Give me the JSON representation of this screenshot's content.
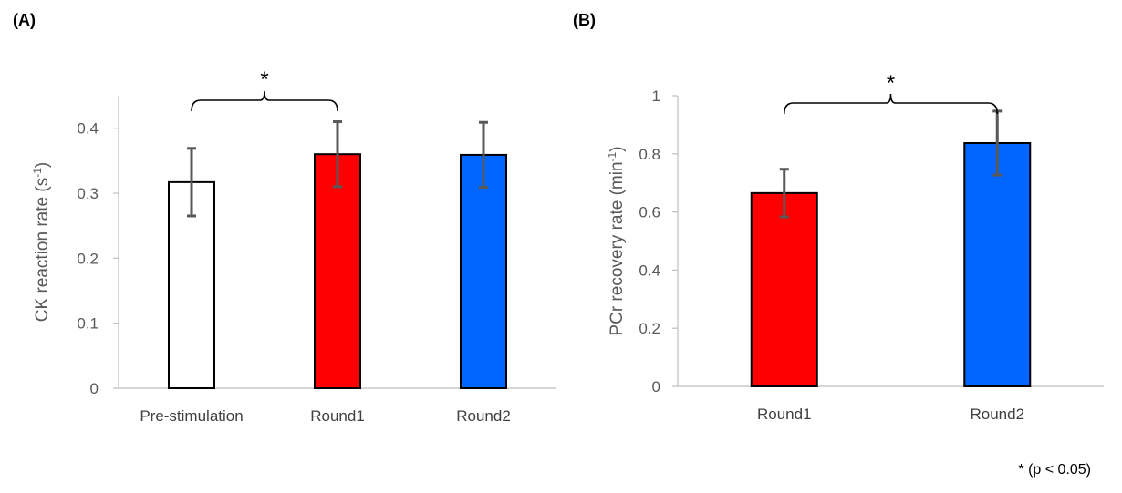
{
  "footnote": "* (p < 0.05)",
  "chart_data": [
    {
      "type": "bar",
      "panel_label": "(A)",
      "ylabel_main": "CK reaction rate (s",
      "ylabel_sup": "-1",
      "ylabel_tail": ")",
      "ylim": [
        0,
        0.45
      ],
      "yticks": [
        0,
        0.1,
        0.2,
        0.3,
        0.4
      ],
      "ytick_labels": [
        "0",
        "0.1",
        "0.2",
        "0.3",
        "0.4"
      ],
      "categories": [
        "Pre-stimulation",
        "Round1",
        "Round2"
      ],
      "values": [
        0.317,
        0.36,
        0.359
      ],
      "errors": [
        0.052,
        0.05,
        0.05
      ],
      "colors": [
        "#ffffff",
        "#ff0000",
        "#0066ff"
      ],
      "significance": {
        "from": 0,
        "to": 1,
        "label": "*"
      },
      "grid": false
    },
    {
      "type": "bar",
      "panel_label": "(B)",
      "ylabel_main": "PCr recovery rate (min",
      "ylabel_sup": "-1",
      "ylabel_tail": ")",
      "ylim": [
        0,
        1.0
      ],
      "yticks": [
        0,
        0.2,
        0.4,
        0.6,
        0.8,
        1.0
      ],
      "ytick_labels": [
        "0",
        "0.2",
        "0.4",
        "0.6",
        "0.8",
        "1"
      ],
      "categories": [
        "Round1",
        "Round2"
      ],
      "values": [
        0.665,
        0.837
      ],
      "errors": [
        0.082,
        0.11
      ],
      "colors": [
        "#ff0000",
        "#0066ff"
      ],
      "significance": {
        "from": 0,
        "to": 1,
        "label": "*"
      },
      "grid": false
    }
  ]
}
